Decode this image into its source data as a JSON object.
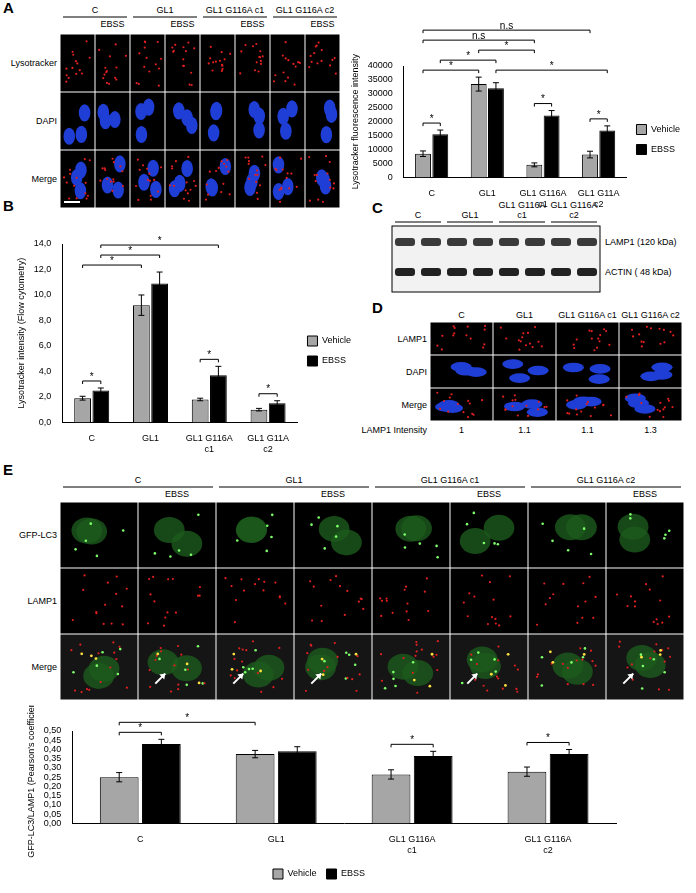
{
  "panel_labels": [
    "A",
    "B",
    "C",
    "D",
    "E"
  ],
  "images": {
    "A": {
      "columns": [
        "C",
        "GL1",
        "GL1 G116A c1",
        "GL1 G116A c2"
      ],
      "subcolumn": "EBSS",
      "rows": [
        "Lysotracker",
        "DAPI",
        "Merge"
      ]
    },
    "D": {
      "columns": [
        "C",
        "GL1",
        "GL1 G116A c1",
        "GL1 G116A c2"
      ],
      "rows": [
        "LAMP1",
        "DAPI",
        "Merge"
      ],
      "measure_label": "LAMP1 Intensity",
      "measure": [
        1,
        1.1,
        1.1,
        1.3
      ]
    },
    "E": {
      "columns": [
        "C",
        "GL1",
        "GL1 G116A c1",
        "GL1 G116A c2"
      ],
      "subcolumn": "EBSS",
      "rows": [
        "GFP-LC3",
        "LAMP1",
        "Merge"
      ]
    }
  },
  "blot": {
    "columns": [
      "C",
      "GL1",
      "GL1 G116A c1",
      "GL1 G116A c2"
    ],
    "bands": [
      "LAMP1 (120 kDa)",
      "ACTIN ( 48 kDa)"
    ]
  },
  "chart_data": [
    {
      "type": "bar",
      "categories": [
        "C",
        "GL1",
        "GL1 G116A c1",
        "GL1 G11A c2"
      ],
      "y_label": "Lysotracker fluorescence intensity",
      "series": [
        {
          "name": "Vehicle",
          "color": "#a6a6a6",
          "values": [
            8500,
            33500,
            4500,
            8200
          ],
          "errors": [
            1000,
            2500,
            700,
            1200
          ]
        },
        {
          "name": "EBSS",
          "color": "#000000",
          "values": [
            15500,
            32000,
            22200,
            16800
          ],
          "errors": [
            1500,
            2000,
            1800,
            1700
          ]
        }
      ],
      "ylim": [
        0,
        40000
      ],
      "yticks": [
        0,
        5000,
        10000,
        15000,
        20000,
        25000,
        30000,
        35000,
        40000
      ],
      "grid": false,
      "legend": "right",
      "significance": [
        {
          "label": "*",
          "between": [
            [
              "C",
              "Vehicle"
            ],
            [
              "C",
              "EBSS"
            ]
          ]
        },
        {
          "label": "*",
          "between": [
            [
              "GL1 G116A c1",
              "Vehicle"
            ],
            [
              "GL1 G116A c1",
              "EBSS"
            ]
          ]
        },
        {
          "label": "*",
          "between": [
            [
              "GL1 G11A c2",
              "Vehicle"
            ],
            [
              "GL1 G11A c2",
              "EBSS"
            ]
          ]
        },
        {
          "label": "*",
          "between": [
            [
              "C",
              "Vehicle"
            ],
            [
              "GL1",
              "Vehicle"
            ]
          ]
        },
        {
          "label": "*",
          "between": [
            [
              "C",
              "EBSS"
            ],
            [
              "GL1",
              "EBSS"
            ]
          ]
        },
        {
          "label": "*",
          "between": [
            [
              "GL1",
              "Vehicle"
            ],
            [
              "GL1 G116A c1",
              "Vehicle"
            ]
          ]
        },
        {
          "label": "*",
          "between": [
            [
              "GL1",
              "EBSS"
            ],
            [
              "GL1 G11A c2",
              "EBSS"
            ]
          ]
        },
        {
          "label": "n.s",
          "between": [
            [
              "C",
              "Vehicle"
            ],
            [
              "GL1 G116A c1",
              "Vehicle"
            ]
          ]
        },
        {
          "label": "n.s",
          "between": [
            [
              "C",
              "Vehicle"
            ],
            [
              "GL1 G11A c2",
              "Vehicle"
            ]
          ]
        }
      ]
    },
    {
      "type": "bar",
      "categories": [
        "C",
        "GL1",
        "GL1 G116A c1",
        "GL1 G11A c2"
      ],
      "y_label": "Lysotracker intensity (Flow cytometry)",
      "series": [
        {
          "name": "Vehicle",
          "color": "#a6a6a6",
          "values": [
            1.9,
            9.2,
            1.8,
            1.0
          ],
          "errors": [
            0.15,
            0.8,
            0.1,
            0.1
          ]
        },
        {
          "name": "EBSS",
          "color": "#000000",
          "values": [
            2.5,
            10.9,
            3.7,
            1.5
          ],
          "errors": [
            0.2,
            0.9,
            0.7,
            0.2
          ]
        }
      ],
      "ylim": [
        0,
        14
      ],
      "yticks": [
        {
          "value": 0,
          "label": "0,0"
        },
        {
          "value": 2,
          "label": "2,0"
        },
        {
          "value": 4,
          "label": "4,0"
        },
        {
          "value": 6,
          "label": "6,0"
        },
        {
          "value": 8,
          "label": "8,0"
        },
        {
          "value": 10,
          "label": "10,0"
        },
        {
          "value": 12,
          "label": "12,0"
        },
        {
          "value": 14,
          "label": "14,0"
        }
      ],
      "grid": false,
      "legend": "right",
      "significance": [
        {
          "label": "*",
          "between": [
            [
              "C",
              "Vehicle"
            ],
            [
              "C",
              "EBSS"
            ]
          ]
        },
        {
          "label": "*",
          "between": [
            [
              "GL1 G116A c1",
              "Vehicle"
            ],
            [
              "GL1 G116A c1",
              "EBSS"
            ]
          ]
        },
        {
          "label": "*",
          "between": [
            [
              "GL1 G11A c2",
              "Vehicle"
            ],
            [
              "GL1 G11A c2",
              "EBSS"
            ]
          ]
        },
        {
          "label": "*",
          "between": [
            [
              "C",
              "Vehicle"
            ],
            [
              "GL1",
              "Vehicle"
            ]
          ]
        },
        {
          "label": "*",
          "between": [
            [
              "C",
              "EBSS"
            ],
            [
              "GL1",
              "EBSS"
            ]
          ]
        },
        {
          "label": "*",
          "between": [
            [
              "C",
              "EBSS"
            ],
            [
              "GL1 G116A c1",
              "EBSS"
            ]
          ]
        }
      ]
    },
    {
      "type": "bar",
      "categories": [
        "C",
        "GL1",
        "GL1 G116A c1",
        "GL1 G116A c2"
      ],
      "y_label": "GFP-LC3/LAMP1 (Pearson's coefficient)",
      "series": [
        {
          "name": "Vehicle",
          "color": "#a6a6a6",
          "values": [
            0.25,
            0.375,
            0.265,
            0.28
          ],
          "errors": [
            0.025,
            0.02,
            0.025,
            0.025
          ]
        },
        {
          "name": "EBSS",
          "color": "#000000",
          "values": [
            0.43,
            0.39,
            0.365,
            0.375
          ],
          "errors": [
            0.025,
            0.025,
            0.025,
            0.025
          ]
        }
      ],
      "ylim": [
        0,
        0.5
      ],
      "yticks": [
        {
          "value": 0,
          "label": "0,00"
        },
        {
          "value": 0.05,
          "label": "0,05"
        },
        {
          "value": 0.1,
          "label": "0,10"
        },
        {
          "value": 0.15,
          "label": "0,15"
        },
        {
          "value": 0.2,
          "label": "0,20"
        },
        {
          "value": 0.25,
          "label": "0,25"
        },
        {
          "value": 0.3,
          "label": "0,30"
        },
        {
          "value": 0.35,
          "label": "0,35"
        },
        {
          "value": 0.4,
          "label": "0,40"
        },
        {
          "value": 0.45,
          "label": "0,45"
        },
        {
          "value": 0.5,
          "label": "0,50"
        }
      ],
      "grid": false,
      "legend": "bottom",
      "significance": [
        {
          "label": "*",
          "between": [
            [
              "C",
              "Vehicle"
            ],
            [
              "C",
              "EBSS"
            ]
          ]
        },
        {
          "label": "*",
          "between": [
            [
              "GL1 G116A c1",
              "Vehicle"
            ],
            [
              "GL1 G116A c1",
              "EBSS"
            ]
          ]
        },
        {
          "label": "*",
          "between": [
            [
              "GL1 G116A c2",
              "Vehicle"
            ],
            [
              "GL1 G116A c2",
              "EBSS"
            ]
          ]
        },
        {
          "label": "*",
          "between": [
            [
              "C",
              "Vehicle"
            ],
            [
              "GL1",
              "Vehicle"
            ]
          ]
        }
      ]
    }
  ]
}
